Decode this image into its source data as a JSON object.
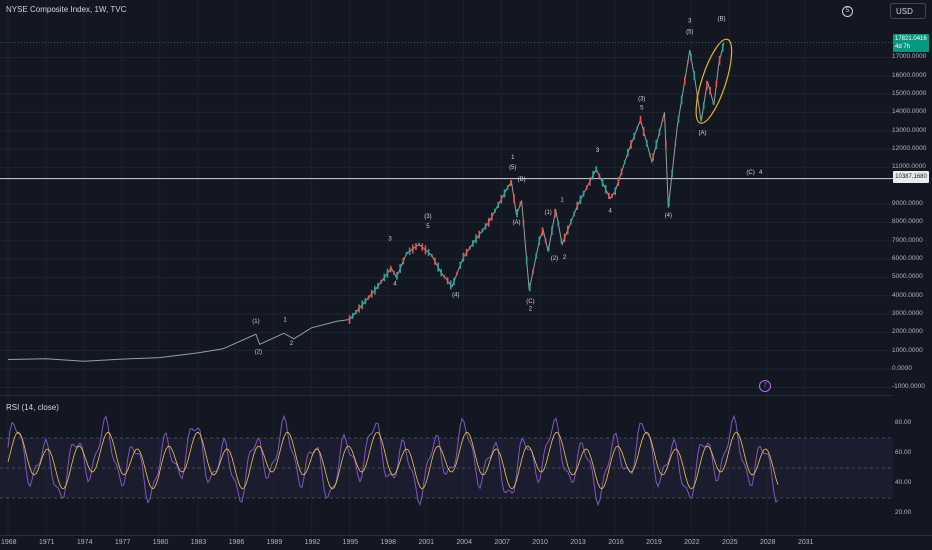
{
  "header": {
    "title": "NYSE Composite Index, 1W, TVC",
    "currency": "USD",
    "top_badge": "5"
  },
  "price_tag": {
    "line1": "17821.0416",
    "line2": "4d 7h"
  },
  "level_tag": "10387.1680",
  "price_axis": [
    "17000.0000",
    "16000.0000",
    "15000.0000",
    "14000.0000",
    "13000.0000",
    "12000.0000",
    "11000.0000",
    "9000.0000",
    "8000.0000",
    "7000.0000",
    "6000.0000",
    "5000.0000",
    "4000.0000",
    "3000.0000",
    "2000.0000",
    "1000.0000",
    "0.0000",
    "-1000.0000"
  ],
  "rsi": {
    "title": "RSI (14, close)",
    "axis": [
      "80.00",
      "60.00",
      "40.00",
      "20.00"
    ]
  },
  "time_axis": [
    "1968",
    "1971",
    "1974",
    "1977",
    "1980",
    "1983",
    "1986",
    "1989",
    "1992",
    "1995",
    "1998",
    "2001",
    "2004",
    "2007",
    "2010",
    "2013",
    "2016",
    "2019",
    "2022",
    "2025",
    "2028",
    "2031"
  ],
  "purple_badge": "7",
  "wave_labels": [
    {
      "text": "(1)",
      "t": 1987.6,
      "v": 2500,
      "color": "#d1d4dc"
    },
    {
      "text": "(2)",
      "t": 1987.8,
      "v": 850,
      "color": "#d1d4dc"
    },
    {
      "text": "1",
      "t": 1989.9,
      "v": 2600,
      "color": "#d1d4dc"
    },
    {
      "text": "2",
      "t": 1990.4,
      "v": 1300,
      "color": "#d1d4dc"
    },
    {
      "text": "3",
      "t": 1998.2,
      "v": 7000,
      "color": "#d1d4dc"
    },
    {
      "text": "4",
      "t": 1998.6,
      "v": 4550,
      "color": "#d1d4dc"
    },
    {
      "text": "(3)",
      "t": 2001.2,
      "v": 8250,
      "color": "#d1d4dc"
    },
    {
      "text": "5",
      "t": 2001.2,
      "v": 7700,
      "color": "#d1d4dc"
    },
    {
      "text": "(4)",
      "t": 2003.4,
      "v": 3950,
      "color": "#d1d4dc"
    },
    {
      "text": "1",
      "t": 2007.9,
      "v": 11450,
      "color": "#d1d4dc"
    },
    {
      "text": "(5)",
      "t": 2007.9,
      "v": 10900,
      "color": "#d1d4dc"
    },
    {
      "text": "(B)",
      "t": 2008.6,
      "v": 10250,
      "color": "#d1d4dc"
    },
    {
      "text": "(A)",
      "t": 2008.2,
      "v": 7900,
      "color": "#d1d4dc"
    },
    {
      "text": "(C)",
      "t": 2009.3,
      "v": 3600,
      "color": "#d1d4dc"
    },
    {
      "text": "2",
      "t": 2009.3,
      "v": 3200,
      "color": "#d1d4dc"
    },
    {
      "text": "(1)",
      "t": 2010.7,
      "v": 8450,
      "color": "#d1d4dc"
    },
    {
      "text": "1",
      "t": 2011.8,
      "v": 9150,
      "color": "#d1d4dc"
    },
    {
      "text": "(2)",
      "t": 2011.2,
      "v": 5950,
      "color": "#d1d4dc"
    },
    {
      "text": "2",
      "t": 2012.0,
      "v": 6000,
      "color": "#d1d4dc"
    },
    {
      "text": "3",
      "t": 2014.6,
      "v": 11850,
      "color": "#d1d4dc"
    },
    {
      "text": "4",
      "t": 2015.6,
      "v": 8550,
      "color": "#d1d4dc"
    },
    {
      "text": "(3)",
      "t": 2018.1,
      "v": 14650,
      "color": "#d1d4dc"
    },
    {
      "text": "5",
      "t": 2018.1,
      "v": 14150,
      "color": "#d1d4dc"
    },
    {
      "text": "(4)",
      "t": 2020.2,
      "v": 8300,
      "color": "#d1d4dc"
    },
    {
      "text": "3",
      "t": 2021.9,
      "v": 18900,
      "color": "#d1d4dc"
    },
    {
      "text": "(5)",
      "t": 2021.9,
      "v": 18300,
      "color": "#d1d4dc"
    },
    {
      "text": "(B)",
      "t": 2024.4,
      "v": 19000,
      "color": "#d1d4dc"
    },
    {
      "text": "(A)",
      "t": 2022.9,
      "v": 12800,
      "color": "#d1d4dc"
    },
    {
      "text": "(C)",
      "t": 2026.7,
      "v": 10650,
      "color": "#d1d4dc"
    },
    {
      "text": "4",
      "t": 2027.5,
      "v": 10650,
      "color": "#d1d4dc"
    }
  ],
  "colors": {
    "background": "#131722",
    "up": "#26a69a",
    "down": "#ef5350",
    "rsi_line": "#7e57c2",
    "rsi_ma": "#f0c93a",
    "ellipse": "#e6b422",
    "level_line": "#d1d4dc"
  }
}
